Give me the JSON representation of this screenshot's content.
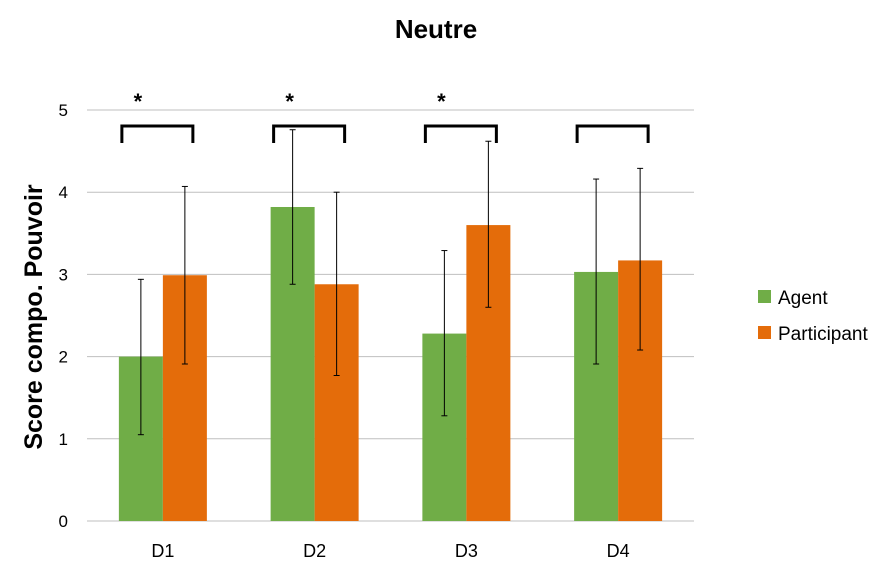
{
  "chart_data": {
    "type": "bar",
    "title": "Neutre",
    "xlabel": "",
    "ylabel": "Score compo. Pouvoir",
    "ylim": [
      0,
      5
    ],
    "yticks": [
      0,
      1,
      2,
      3,
      4,
      5
    ],
    "grid": true,
    "legend_position": "right",
    "categories": [
      "D1",
      "D2",
      "D3",
      "D4"
    ],
    "series": [
      {
        "name": "Agent",
        "color": "#70AD47",
        "values": [
          2.0,
          3.82,
          2.28,
          3.03
        ],
        "error_low": [
          1.05,
          2.88,
          1.28,
          1.91
        ],
        "error_high": [
          2.94,
          4.76,
          3.29,
          4.16
        ]
      },
      {
        "name": "Participant",
        "color": "#E46C0A",
        "values": [
          2.99,
          2.88,
          3.6,
          3.17
        ],
        "error_low": [
          1.91,
          1.77,
          2.6,
          2.08
        ],
        "error_high": [
          4.07,
          4.0,
          4.62,
          4.29
        ]
      }
    ],
    "significance": [
      "*",
      "*",
      "*",
      ""
    ]
  }
}
